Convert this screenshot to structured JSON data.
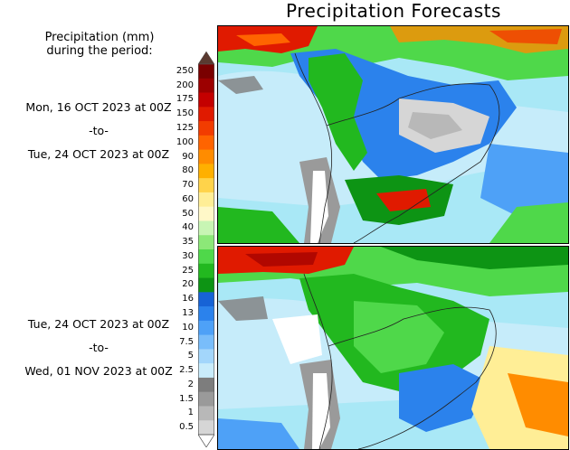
{
  "title": "Precipitation Forecasts",
  "legend": {
    "title_line1": "Precipitation (mm)",
    "title_line2": "during the period:",
    "levels": [
      "250",
      "200",
      "175",
      "150",
      "125",
      "100",
      "90",
      "80",
      "70",
      "60",
      "50",
      "40",
      "35",
      "30",
      "25",
      "20",
      "16",
      "13",
      "10",
      "7.5",
      "5",
      "2.5",
      "2",
      "1.5",
      "1",
      "0.5"
    ],
    "colors": [
      "#7a0000",
      "#9c0000",
      "#c40000",
      "#e01a00",
      "#f23c00",
      "#ff6400",
      "#ff8c00",
      "#ffb000",
      "#ffd34a",
      "#ffee96",
      "#fff8c8",
      "#c8f5b4",
      "#8ce878",
      "#4fd84a",
      "#22b81f",
      "#0d9414",
      "#1763d6",
      "#2b82ec",
      "#4ea1f7",
      "#79bdfa",
      "#a3d6fb",
      "#c9ecfb",
      "#7d7d7d",
      "#9a9a9a",
      "#b8b8b8",
      "#d6d6d6"
    ],
    "top_arrow_color": "#5a3a30"
  },
  "periods": [
    {
      "start": "Mon, 16 OCT 2023 at 00Z",
      "sep": "-to-",
      "end": "Tue, 24 OCT 2023 at 00Z"
    },
    {
      "start": "Tue, 24 OCT 2023 at 00Z",
      "sep": "-to-",
      "end": "Wed, 01 NOV 2023 at 00Z"
    }
  ]
}
